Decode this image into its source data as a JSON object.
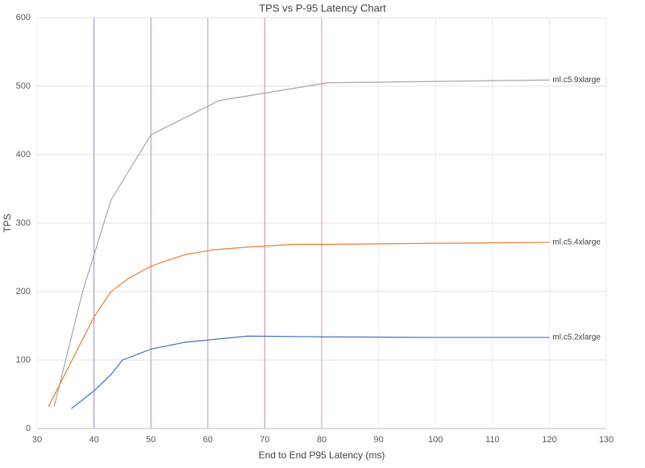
{
  "chart_data": {
    "type": "line",
    "title": "TPS vs P-95 Latency Chart",
    "x_label": "End to End P95 Latency (ms)",
    "y_label": "TPS",
    "xlim": [
      30,
      130
    ],
    "xticks": [
      30,
      40,
      50,
      60,
      70,
      80,
      90,
      100,
      110,
      120,
      130
    ],
    "ylim": [
      0,
      600
    ],
    "yticks": [
      0,
      100,
      200,
      300,
      400,
      500,
      600
    ],
    "grid": true,
    "reference_lines": [
      {
        "x": 40,
        "color": "#a08cbf"
      },
      {
        "x": 50,
        "color": "#e08a8a"
      },
      {
        "x": 60,
        "color": "#b3a3c8"
      },
      {
        "x": 70,
        "color": "#d88fa0"
      },
      {
        "x": 80,
        "color": "#e89090"
      }
    ],
    "series": [
      {
        "name": "ml.c5.9xlarge",
        "color": "#a5a5a5",
        "x": [
          33,
          38,
          43,
          50,
          62,
          81,
          120
        ],
        "values": [
          32,
          200,
          334,
          429,
          479,
          505,
          509
        ]
      },
      {
        "name": "ml.c5.4xlarge",
        "color": "#ed7d31",
        "x": [
          32,
          40,
          43,
          46,
          50,
          52,
          56,
          61,
          67,
          75,
          81,
          120
        ],
        "values": [
          32,
          163,
          200,
          219,
          237,
          243,
          254,
          261,
          265,
          269,
          269,
          272
        ]
      },
      {
        "name": "ml.c5.2xlarge",
        "color": "#4472c4",
        "x": [
          36,
          40,
          43,
          45,
          50,
          56,
          67,
          80,
          100,
          120
        ],
        "values": [
          29,
          55,
          79,
          100,
          116,
          126,
          135,
          134,
          133,
          133
        ]
      }
    ]
  }
}
